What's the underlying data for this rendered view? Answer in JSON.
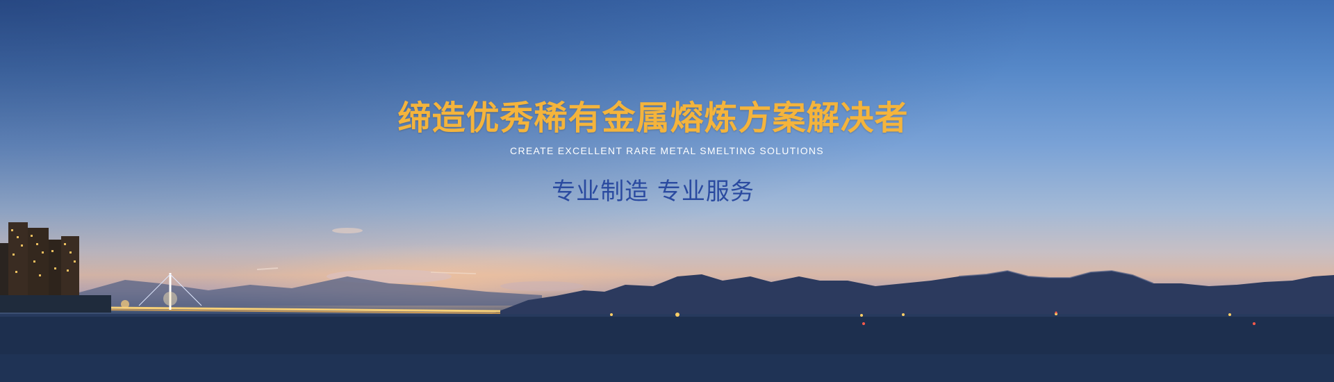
{
  "banner": {
    "headline": "缔造优秀稀有金属熔炼方案解决者",
    "subheadline": "CREATE EXCELLENT RARE METAL SMELTING SOLUTIONS",
    "tagline": "专业制造 专业服务"
  },
  "colors": {
    "headline": "#f4b43c",
    "subheadline": "#ffffff",
    "tagline": "#2a4aa0",
    "sea": "#1d2f4e",
    "mountains": "#2c3a5e"
  },
  "scene": {
    "description_icons": [
      "city-skyline-icon",
      "bridge-icon",
      "mountain-range-icon",
      "sea-icon"
    ]
  }
}
